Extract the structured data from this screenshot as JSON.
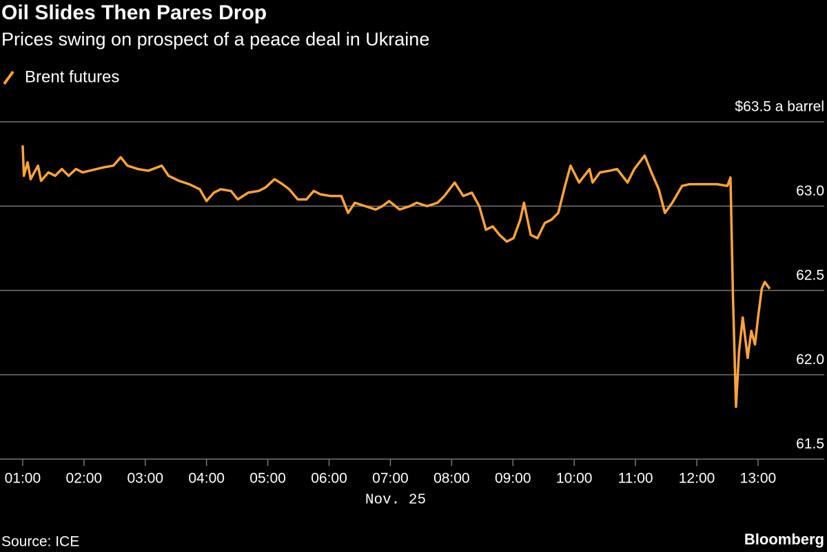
{
  "chart_data": {
    "type": "line",
    "title": "Oil Slides Then Pares Drop",
    "subtitle": "Prices swing on prospect of a peace deal in Ukraine",
    "xlabel": "Nov. 25",
    "source": "Source: ICE",
    "brand": "Bloomberg",
    "x": [
      1.0,
      1.02,
      1.08,
      1.13,
      1.25,
      1.3,
      1.42,
      1.53,
      1.64,
      1.75,
      1.87,
      1.98,
      2.09,
      2.32,
      2.48,
      2.6,
      2.71,
      2.88,
      3.05,
      3.27,
      3.38,
      3.55,
      3.72,
      3.89,
      4.0,
      4.12,
      4.23,
      4.4,
      4.51,
      4.68,
      4.85,
      4.96,
      5.11,
      5.24,
      5.35,
      5.49,
      5.63,
      5.75,
      5.86,
      6.03,
      6.2,
      6.31,
      6.42,
      6.59,
      6.76,
      6.87,
      6.98,
      7.15,
      7.32,
      7.43,
      7.6,
      7.77,
      7.88,
      8.05,
      8.19,
      8.33,
      8.45,
      8.56,
      8.67,
      8.78,
      8.9,
      9.01,
      9.12,
      9.18,
      9.29,
      9.4,
      9.52,
      9.63,
      9.74,
      9.85,
      9.94,
      10.08,
      10.25,
      10.3,
      10.42,
      10.58,
      10.7,
      10.87,
      10.98,
      11.15,
      11.26,
      11.38,
      11.48,
      11.6,
      11.76,
      11.88,
      12.1,
      12.33,
      12.5,
      12.55,
      12.59,
      12.64,
      12.69,
      12.75,
      12.83,
      12.89,
      12.95,
      13.0,
      13.06,
      13.11,
      13.19
    ],
    "series": [
      {
        "name": "Brent futures",
        "color": "#ffa43a",
        "values": [
          63.36,
          63.18,
          63.26,
          63.16,
          63.24,
          63.15,
          63.2,
          63.18,
          63.22,
          63.18,
          63.22,
          63.2,
          63.21,
          63.23,
          63.24,
          63.29,
          63.24,
          63.22,
          63.21,
          63.24,
          63.18,
          63.15,
          63.13,
          63.1,
          63.03,
          63.08,
          63.1,
          63.09,
          63.04,
          63.08,
          63.09,
          63.11,
          63.16,
          63.13,
          63.1,
          63.04,
          63.04,
          63.09,
          63.07,
          63.06,
          63.06,
          62.96,
          63.02,
          63.0,
          62.98,
          63.0,
          63.03,
          62.98,
          63.0,
          63.02,
          63.0,
          63.02,
          63.06,
          63.14,
          63.06,
          63.08,
          63.0,
          62.86,
          62.88,
          62.83,
          62.79,
          62.81,
          62.92,
          63.02,
          62.83,
          62.81,
          62.9,
          62.92,
          62.96,
          63.12,
          63.24,
          63.14,
          63.22,
          63.14,
          63.2,
          63.21,
          63.22,
          63.14,
          63.22,
          63.3,
          63.2,
          63.1,
          62.96,
          63.02,
          63.12,
          63.13,
          63.13,
          63.13,
          63.12,
          63.17,
          62.47,
          61.81,
          62.14,
          62.34,
          62.1,
          62.26,
          62.18,
          62.34,
          62.51,
          62.55,
          62.51
        ]
      }
    ],
    "xlim": [
      0.63,
      14.08
    ],
    "xticks": [
      {
        "value": 1,
        "label": "01:00"
      },
      {
        "value": 2,
        "label": "02:00"
      },
      {
        "value": 3,
        "label": "03:00"
      },
      {
        "value": 4,
        "label": "04:00"
      },
      {
        "value": 5,
        "label": "05:00"
      },
      {
        "value": 6,
        "label": "06:00"
      },
      {
        "value": 7,
        "label": "07:00"
      },
      {
        "value": 8,
        "label": "08:00"
      },
      {
        "value": 9,
        "label": "09:00"
      },
      {
        "value": 10,
        "label": "10:00"
      },
      {
        "value": 11,
        "label": "11:00"
      },
      {
        "value": 12,
        "label": "12:00"
      },
      {
        "value": 13,
        "label": "13:00"
      }
    ],
    "ylim": [
      61.5,
      63.5
    ],
    "yticks": [
      {
        "value": 61.5,
        "label": "61.5"
      },
      {
        "value": 62,
        "label": "62.0"
      },
      {
        "value": 62.5,
        "label": "62.5"
      },
      {
        "value": 63,
        "label": "63.0"
      },
      {
        "value": 63.5,
        "label": "$63.5 a barrel"
      }
    ],
    "grid": true
  }
}
